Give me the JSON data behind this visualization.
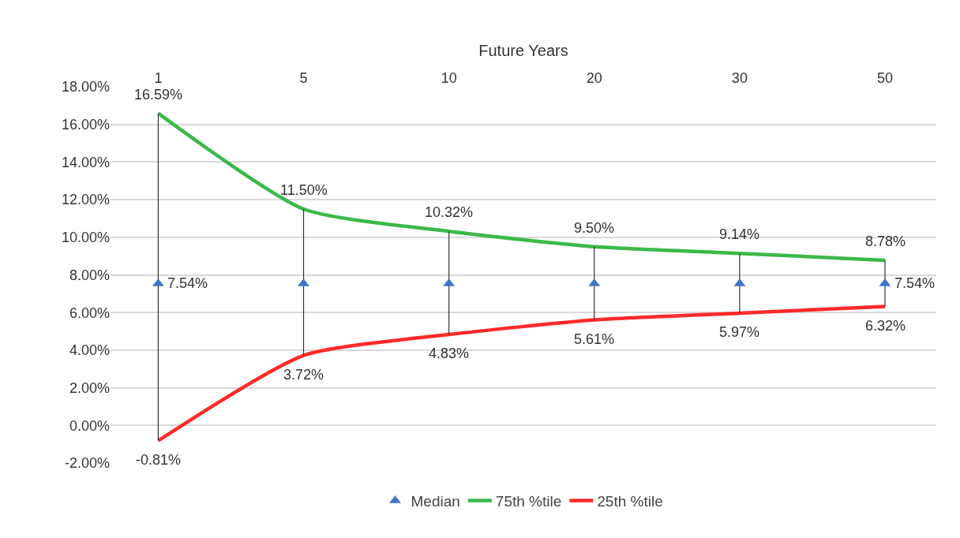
{
  "chart_data": {
    "type": "line",
    "xlabel": "Future Years",
    "categories": [
      "1",
      "5",
      "10",
      "20",
      "30",
      "50"
    ],
    "series": [
      {
        "name": "Median",
        "type": "scatter",
        "marker": "triangle",
        "color": "#3f77c6",
        "values": [
          7.54,
          7.54,
          7.54,
          7.54,
          7.54,
          7.54
        ],
        "value_labels": [
          "7.54%",
          null,
          null,
          null,
          null,
          "7.54%"
        ],
        "errors": [
          [
            -0.81,
            16.59
          ],
          [
            3.72,
            11.5
          ],
          [
            4.83,
            10.32
          ],
          [
            5.61,
            9.5
          ],
          [
            5.97,
            9.14
          ],
          [
            6.32,
            8.78
          ]
        ]
      },
      {
        "name": "75th %tile",
        "type": "line",
        "marker": "none",
        "line_style": "solid",
        "color": "#3cb84a",
        "values": [
          16.59,
          11.5,
          10.32,
          9.5,
          9.14,
          8.78
        ],
        "value_labels": [
          "16.59%",
          "11.50%",
          "10.32%",
          "9.50%",
          "9.14%",
          "8.78%"
        ]
      },
      {
        "name": "25th %tile",
        "type": "line",
        "marker": "none",
        "line_style": "solid",
        "color": "#ff2a2a",
        "values": [
          -0.81,
          3.72,
          4.83,
          5.61,
          5.97,
          6.32
        ],
        "value_labels": [
          "-0.81%",
          "3.72%",
          "4.83%",
          "5.61%",
          "5.97%",
          "6.32%"
        ]
      }
    ],
    "ylim": [
      -2,
      18
    ],
    "yticks": [
      {
        "value": -2,
        "label": "-2.00%"
      },
      {
        "value": 0,
        "label": "0.00%"
      },
      {
        "value": 2,
        "label": "2.00%"
      },
      {
        "value": 4,
        "label": "4.00%"
      },
      {
        "value": 6,
        "label": "6.00%"
      },
      {
        "value": 8,
        "label": "8.00%"
      },
      {
        "value": 10,
        "label": "10.00%"
      },
      {
        "value": 12,
        "label": "12.00%"
      },
      {
        "value": 14,
        "label": "14.00%"
      },
      {
        "value": 16,
        "label": "16.00%"
      },
      {
        "value": 18,
        "label": "18.00%"
      }
    ],
    "grid": "y",
    "legend": "bottom"
  }
}
